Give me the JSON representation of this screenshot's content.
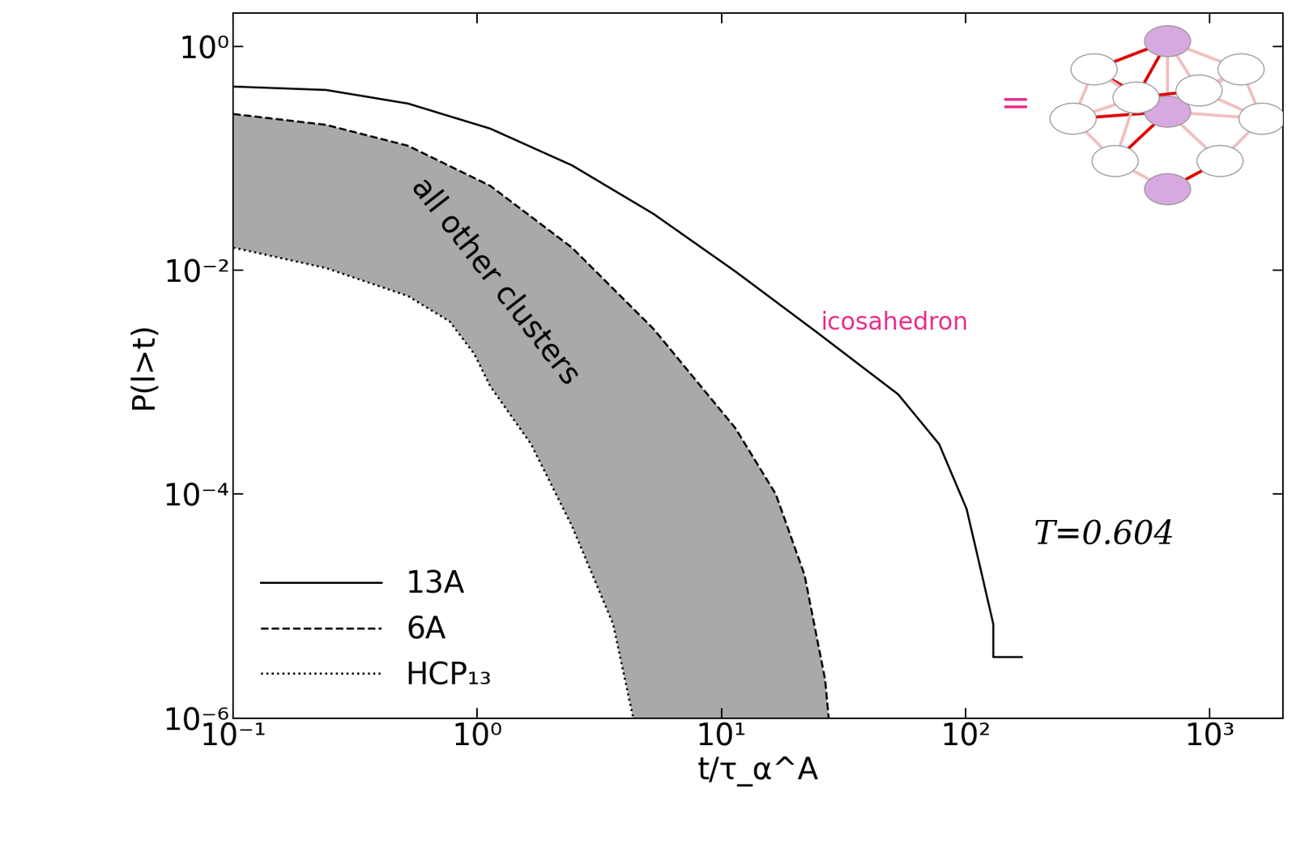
{
  "chart_data": {
    "type": "line",
    "x_label": "t/τ_α^A",
    "y_label": "P(l>t)",
    "log": true,
    "xlim": [
      0.1,
      2000
    ],
    "ylim": [
      1e-06,
      2
    ],
    "xticks": [
      {
        "value": 0.1,
        "label": "10⁻¹"
      },
      {
        "value": 1,
        "label": "10⁰"
      },
      {
        "value": 10,
        "label": "10¹"
      },
      {
        "value": 100,
        "label": "10²"
      },
      {
        "value": 1000,
        "label": "10³"
      }
    ],
    "yticks": [
      {
        "value": 1e-06,
        "label": "10⁻⁶"
      },
      {
        "value": 0.0001,
        "label": "10⁻⁴"
      },
      {
        "value": 0.01,
        "label": "10⁻²"
      },
      {
        "value": 1,
        "label": "10⁰"
      }
    ],
    "legend": "lower left",
    "series": [
      {
        "name": "13A",
        "color": "#000000",
        "line_style": "solid",
        "x": [
          0.1,
          0.24,
          0.52,
          1.13,
          2.44,
          5.27,
          11.4,
          24.6,
          53,
          78,
          101,
          115,
          130,
          130,
          170
        ],
        "values": [
          0.44,
          0.41,
          0.31,
          0.185,
          0.087,
          0.032,
          0.0098,
          0.0028,
          0.00078,
          0.00028,
          7.4e-05,
          2.2e-05,
          6.9e-06,
          3.5e-06,
          3.5e-06
        ]
      },
      {
        "name": "6A",
        "color": "#000000",
        "line_style": "dashed",
        "x": [
          0.1,
          0.24,
          0.52,
          1.13,
          2.44,
          5.27,
          11.4,
          16.7,
          21.9,
          26.6,
          27.5
        ],
        "values": [
          0.25,
          0.2,
          0.13,
          0.057,
          0.016,
          0.003,
          0.00039,
          0.0001,
          1.9e-05,
          2.2e-06,
          1e-06
        ]
      },
      {
        "name": "HCP₁₃",
        "color": "#000000",
        "line_style": "dotted",
        "x": [
          0.1,
          0.24,
          0.52,
          0.77,
          0.97,
          1.13,
          1.66,
          2.44,
          3.6,
          4.35
        ],
        "values": [
          0.016,
          0.0105,
          0.0059,
          0.0035,
          0.0018,
          0.00092,
          0.00028,
          5.2e-05,
          6.9e-06,
          1e-06
        ]
      }
    ],
    "band_color": "#a9a9a9",
    "annotations": [
      "all other clusters",
      "T=0.604",
      "icosahedron",
      "="
    ]
  }
}
